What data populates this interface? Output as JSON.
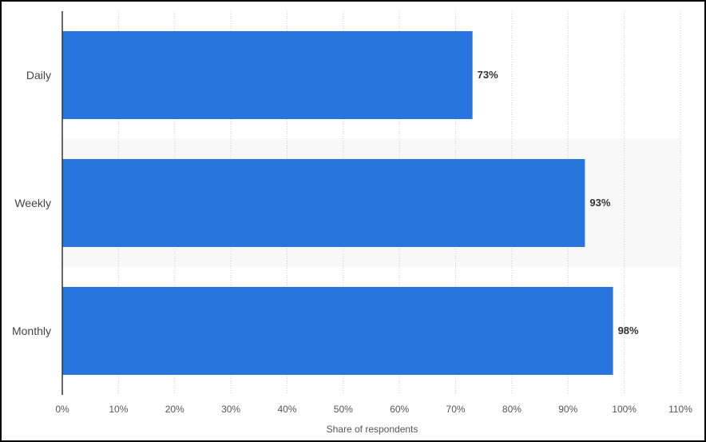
{
  "chart_data": {
    "type": "bar",
    "orientation": "horizontal",
    "categories": [
      "Daily",
      "Weekly",
      "Monthly"
    ],
    "values": [
      73,
      93,
      98
    ],
    "data_labels": [
      "73%",
      "93%",
      "98%"
    ],
    "xlabel": "Share of respondents",
    "ylabel": "",
    "xlim": [
      0,
      110
    ],
    "ticks": [
      0,
      10,
      20,
      30,
      40,
      50,
      60,
      70,
      80,
      90,
      100,
      110
    ],
    "tick_labels": [
      "0%",
      "10%",
      "20%",
      "30%",
      "40%",
      "50%",
      "60%",
      "70%",
      "80%",
      "90%",
      "100%",
      "110%"
    ],
    "grid": true,
    "bar_color": "#2876dd",
    "band_color": "#f8f8f8",
    "grid_color": "#cccccc"
  }
}
